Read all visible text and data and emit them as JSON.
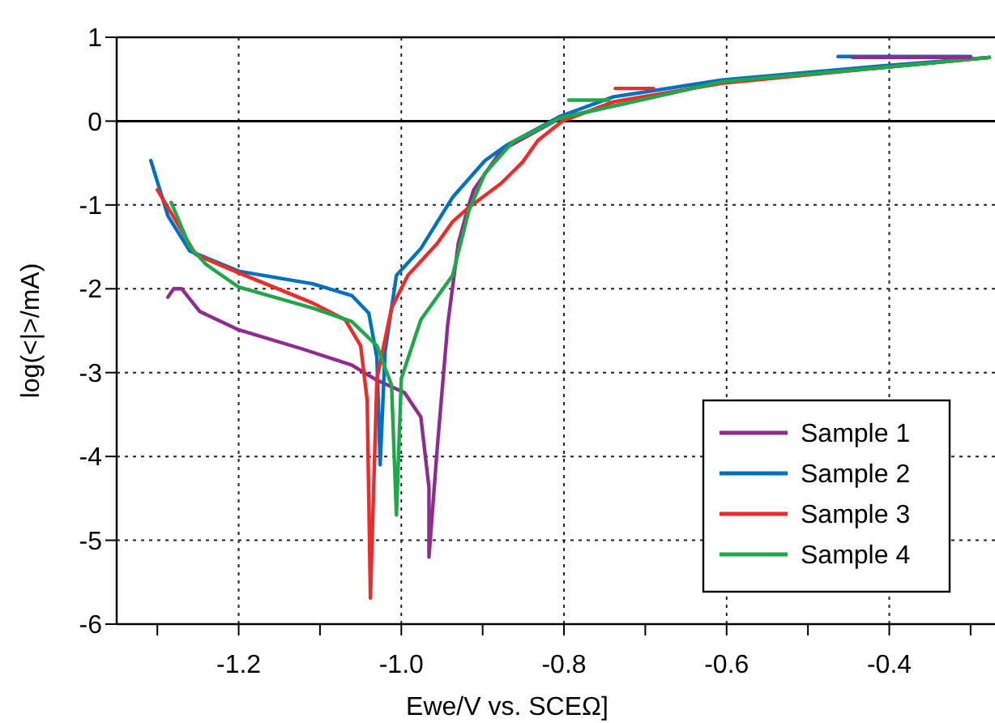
{
  "chart_data": {
    "type": "line",
    "xlabel": "Ewe/V vs. SCEΩ]",
    "ylabel": "log(<|>/mA)",
    "xlim": [
      -1.35,
      -0.27
    ],
    "ylim": [
      -6,
      1
    ],
    "xticks": [
      {
        "value": -1.3,
        "label": null
      },
      -1.2,
      {
        "value": -1.1,
        "label": null
      },
      {
        "value": -1,
        "label": "-1.0"
      },
      {
        "value": -0.9,
        "label": null
      },
      -0.8,
      {
        "value": -0.7,
        "label": null
      },
      -0.6,
      {
        "value": -0.5,
        "label": null
      },
      -0.4,
      {
        "value": -0.3,
        "label": null
      }
    ],
    "yticks": [
      -6,
      -5,
      -4,
      -3,
      -2,
      -1,
      0,
      1
    ],
    "grid": true,
    "legend": "bottom right",
    "line_style": "solid",
    "marker": "none",
    "ref_lines": [
      {
        "axis": "y",
        "value": 0,
        "color": "#000000",
        "line_style": "solid"
      }
    ],
    "series": [
      {
        "name": "Sample 1",
        "color": "#8e2c90",
        "x": [
          -1.287,
          -1.28,
          -1.27,
          -1.248,
          -1.2,
          -1.121,
          -1.061,
          -1.03,
          -0.996,
          -0.976,
          -0.966,
          -0.966,
          -0.956,
          -0.943,
          -0.93,
          -0.917,
          -0.911,
          -0.877,
          -0.804,
          -0.606,
          -0.408,
          -0.277
        ],
        "values": [
          -2.1,
          -2.0,
          -2.0,
          -2.27,
          -2.49,
          -2.72,
          -2.91,
          -3.09,
          -3.24,
          -3.53,
          -4.37,
          -5.2,
          -3.92,
          -2.43,
          -1.46,
          -1.0,
          -0.82,
          -0.35,
          0.04,
          0.47,
          0.64,
          0.76
        ]
      },
      {
        "name": "Sample 2",
        "color": "#0070c0",
        "x": [
          -1.308,
          -1.287,
          -1.26,
          -1.2,
          -1.109,
          -1.061,
          -1.04,
          -1.03,
          -1.026,
          -1.02,
          -1.006,
          -0.976,
          -0.937,
          -0.897,
          -0.871,
          -0.804,
          -0.739,
          -0.606,
          -0.408,
          -0.277
        ],
        "values": [
          -0.47,
          -1.13,
          -1.55,
          -1.79,
          -1.94,
          -2.08,
          -2.29,
          -2.82,
          -4.1,
          -2.75,
          -1.84,
          -1.52,
          -0.91,
          -0.47,
          -0.29,
          0.06,
          0.29,
          0.49,
          0.66,
          0.76
        ]
      },
      {
        "name": "Sample 3",
        "color": "#ee2b2b",
        "x": [
          -1.3,
          -1.273,
          -1.253,
          -1.2,
          -1.109,
          -1.069,
          -1.05,
          -1.042,
          -1.038,
          -1.03,
          -1.012,
          -0.992,
          -0.956,
          -0.937,
          -0.917,
          -0.877,
          -0.851,
          -0.832,
          -0.802,
          -0.739,
          -0.606,
          -0.408,
          -0.277
        ],
        "values": [
          -0.82,
          -1.26,
          -1.59,
          -1.81,
          -2.17,
          -2.37,
          -2.68,
          -3.33,
          -5.69,
          -3.07,
          -2.23,
          -1.84,
          -1.46,
          -1.2,
          -1.03,
          -0.74,
          -0.49,
          -0.23,
          0,
          0.23,
          0.45,
          0.64,
          0.76
        ]
      },
      {
        "name": "Sample 4",
        "color": "#1ea84a",
        "x": [
          -1.283,
          -1.26,
          -1.24,
          -1.2,
          -1.109,
          -1.061,
          -1.03,
          -1.012,
          -1.006,
          -1.0,
          -0.976,
          -0.937,
          -0.917,
          -0.897,
          -0.863,
          -0.804,
          -0.606,
          -0.408,
          -0.277
        ],
        "values": [
          -0.97,
          -1.5,
          -1.71,
          -1.98,
          -2.23,
          -2.39,
          -2.68,
          -3.15,
          -4.7,
          -3.07,
          -2.37,
          -1.84,
          -1.07,
          -0.62,
          -0.25,
          0.04,
          0.47,
          0.64,
          0.76
        ]
      },
      {
        "color": "#0070c0",
        "x": [
          -0.463,
          -0.3
        ],
        "values": [
          0.77,
          0.77
        ]
      },
      {
        "color": "#8e2c90",
        "x": [
          -0.445,
          -0.3
        ],
        "values": [
          0.76,
          0.76
        ]
      },
      {
        "color": "#ee2b2b",
        "x": [
          -0.737,
          -0.69
        ],
        "values": [
          0.39,
          0.39
        ]
      },
      {
        "color": "#1ea84a",
        "x": [
          -0.794,
          -0.745
        ],
        "values": [
          0.25,
          0.25
        ]
      }
    ]
  }
}
